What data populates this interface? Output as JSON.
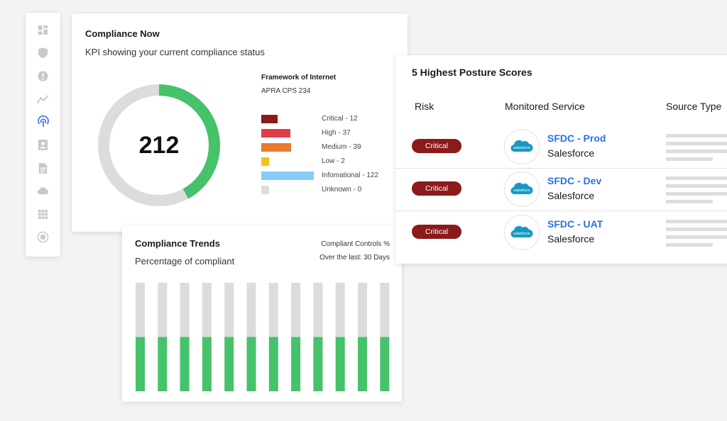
{
  "sidebar": {
    "items": [
      {
        "icon": "dashboard-icon"
      },
      {
        "icon": "shield-icon"
      },
      {
        "icon": "alert-icon"
      },
      {
        "icon": "trend-icon"
      },
      {
        "icon": "radar-icon",
        "active": true
      },
      {
        "icon": "contact-card-icon"
      },
      {
        "icon": "document-icon"
      },
      {
        "icon": "cloud-icon"
      },
      {
        "icon": "apps-grid-icon"
      },
      {
        "icon": "report-icon"
      }
    ]
  },
  "compliance_now": {
    "title": "Compliance Now",
    "subtitle": "KPI showing your current compliance status",
    "kpi_value": "212",
    "compliance_fraction": 0.42,
    "colors": {
      "compliant": "#46c26b",
      "remaining": "#dcdcdc"
    },
    "framework_title": "Framework of Internet",
    "framework_name": "APRA CPS 234",
    "legend": [
      {
        "label": "Critical - 12",
        "count": 12,
        "color": "#8b1a1a"
      },
      {
        "label": "High - 37",
        "count": 37,
        "color": "#e03c48"
      },
      {
        "label": "Medium - 39",
        "count": 39,
        "color": "#ea7a2e"
      },
      {
        "label": "Low - 2",
        "count": 2,
        "color": "#f2c21b"
      },
      {
        "label": "Infomational - 122",
        "count": 122,
        "color": "#86ccf8"
      },
      {
        "label": "Unknown - 0",
        "count": 0,
        "color": "#dddddd"
      }
    ]
  },
  "posture": {
    "title": "5 Highest Posture Scores",
    "columns": [
      "Risk",
      "Monitored Service",
      "Source Type"
    ],
    "rows": [
      {
        "risk": "Critical",
        "name": "SFDC - Prod",
        "type": "Salesforce",
        "logo_text": "salesforce"
      },
      {
        "risk": "Critical",
        "name": "SFDC - Dev",
        "type": "Salesforce",
        "logo_text": "salesforce"
      },
      {
        "risk": "Critical",
        "name": "SFDC - UAT",
        "type": "Salesforce",
        "logo_text": "salesforce"
      }
    ],
    "colors": {
      "risk": "#8b1a1a",
      "link": "#2f6fe0"
    }
  },
  "trends": {
    "title": "Compliance Trends",
    "subtitle": "Percentage of compliant",
    "meta_label": "Compliant Controls %",
    "range_label": "Over the last: 30 Days",
    "colors": {
      "compliant": "#46c26b",
      "remaining": "#dcdcdc"
    }
  },
  "chart_data": {
    "type": "bar",
    "stacked": true,
    "series": [
      {
        "values": [
          50,
          50,
          50,
          50,
          50,
          50,
          50,
          50,
          50,
          50,
          50,
          50
        ]
      },
      {
        "values": [
          50,
          50,
          50,
          50,
          50,
          50,
          50,
          50,
          50,
          50,
          50,
          50
        ]
      }
    ],
    "ylim": [
      0,
      100
    ]
  }
}
